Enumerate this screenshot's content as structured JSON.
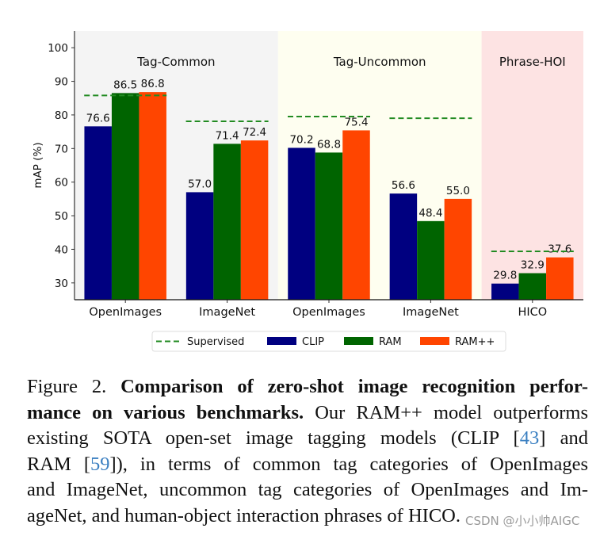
{
  "chart_data": {
    "type": "bar",
    "ylabel": "mAP (%)",
    "ylim": [
      25,
      105
    ],
    "yticks": [
      30,
      40,
      50,
      60,
      70,
      80,
      90,
      100
    ],
    "categories": [
      "OpenImages",
      "ImageNet",
      "OpenImages",
      "ImageNet",
      "HICO"
    ],
    "regions": [
      {
        "label": "Tag-Common",
        "from": 0,
        "to": 1,
        "color": "#f4f4f4"
      },
      {
        "label": "Tag-Uncommon",
        "from": 2,
        "to": 3,
        "color": "#fefef0"
      },
      {
        "label": "Phrase-HOI",
        "from": 4,
        "to": 4,
        "color": "#fde3e3"
      }
    ],
    "series": [
      {
        "name": "CLIP",
        "color": "#000080",
        "values": [
          76.6,
          57.0,
          70.2,
          56.6,
          29.8
        ]
      },
      {
        "name": "RAM",
        "color": "#006400",
        "values": [
          86.5,
          71.4,
          68.8,
          48.4,
          32.9
        ]
      },
      {
        "name": "RAM++",
        "color": "#ff4500",
        "values": [
          86.8,
          72.4,
          75.4,
          55.0,
          37.6
        ]
      }
    ],
    "reference": {
      "name": "Supervised",
      "color": "#228b22",
      "style": "dashed",
      "values": [
        85.8,
        78.1,
        79.5,
        79.0,
        39.4
      ]
    },
    "data_labels": true,
    "grid": false,
    "legend_placement": "bottom"
  },
  "caption": {
    "lines": [
      [
        {
          "t": "Figure 2.  ",
          "s": "n"
        },
        {
          "t": "Comparison of zero-shot image recognition perfor-",
          "s": "b"
        }
      ],
      [
        {
          "t": "mance on various benchmarks.",
          "s": "b"
        },
        {
          "t": " Our RAM++ model outperforms",
          "s": "n"
        }
      ],
      [
        {
          "t": "existing SOTA open-set image tagging models (CLIP [",
          "s": "n"
        },
        {
          "t": "43",
          "s": "r"
        },
        {
          "t": "] and",
          "s": "n"
        }
      ],
      [
        {
          "t": "RAM [",
          "s": "n"
        },
        {
          "t": "59",
          "s": "r"
        },
        {
          "t": "]), in terms of common tag categories of OpenImages",
          "s": "n"
        }
      ],
      [
        {
          "t": "and ImageNet, uncommon tag categories of OpenImages and Im-",
          "s": "n"
        }
      ],
      [
        {
          "t": "ageNet, and human-object interaction phrases of HICO.",
          "s": "n"
        }
      ]
    ],
    "link_color": "#3a7fc1"
  },
  "watermark": "CSDN @小小帅AIGC"
}
